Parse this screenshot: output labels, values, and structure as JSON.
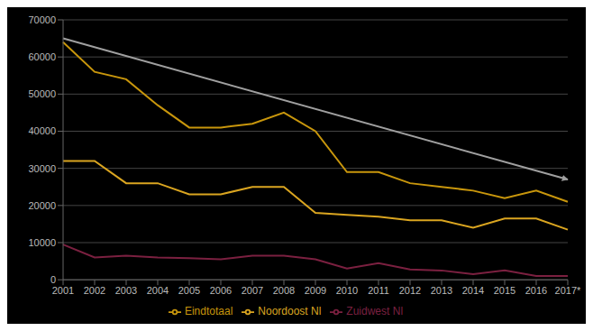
{
  "chart_data": {
    "type": "line",
    "categories": [
      "2001",
      "2002",
      "2003",
      "2004",
      "2005",
      "2006",
      "2007",
      "2008",
      "2009",
      "2010",
      "2011",
      "2012",
      "2013",
      "2014",
      "2015",
      "2016",
      "2017*"
    ],
    "series": [
      {
        "name": "Eindtotaal",
        "color": "#C8960C",
        "values": [
          64000,
          56000,
          54000,
          47000,
          41000,
          41000,
          42000,
          45000,
          40000,
          29000,
          29000,
          26000,
          25000,
          24000,
          22000,
          24000,
          21000
        ]
      },
      {
        "name": "Noordoost Nl",
        "color": "#DAA520",
        "values": [
          32000,
          32000,
          26000,
          26000,
          23000,
          23000,
          25000,
          25000,
          18000,
          17500,
          17000,
          16000,
          16000,
          14000,
          16500,
          16500,
          13500
        ]
      },
      {
        "name": "Zuidwest Nl",
        "color": "#7B2040",
        "values": [
          9500,
          6000,
          6500,
          6000,
          5800,
          5500,
          6500,
          6500,
          5500,
          3000,
          4500,
          2800,
          2500,
          1500,
          2500,
          1000,
          1000
        ]
      }
    ],
    "trend_line": {
      "values": [
        65000,
        27000
      ],
      "color": "#A0A0A0"
    },
    "ylim": [
      0,
      70000
    ],
    "yticks": [
      0,
      10000,
      20000,
      30000,
      40000,
      50000,
      60000,
      70000
    ],
    "grid": true,
    "legend": "bottom"
  }
}
